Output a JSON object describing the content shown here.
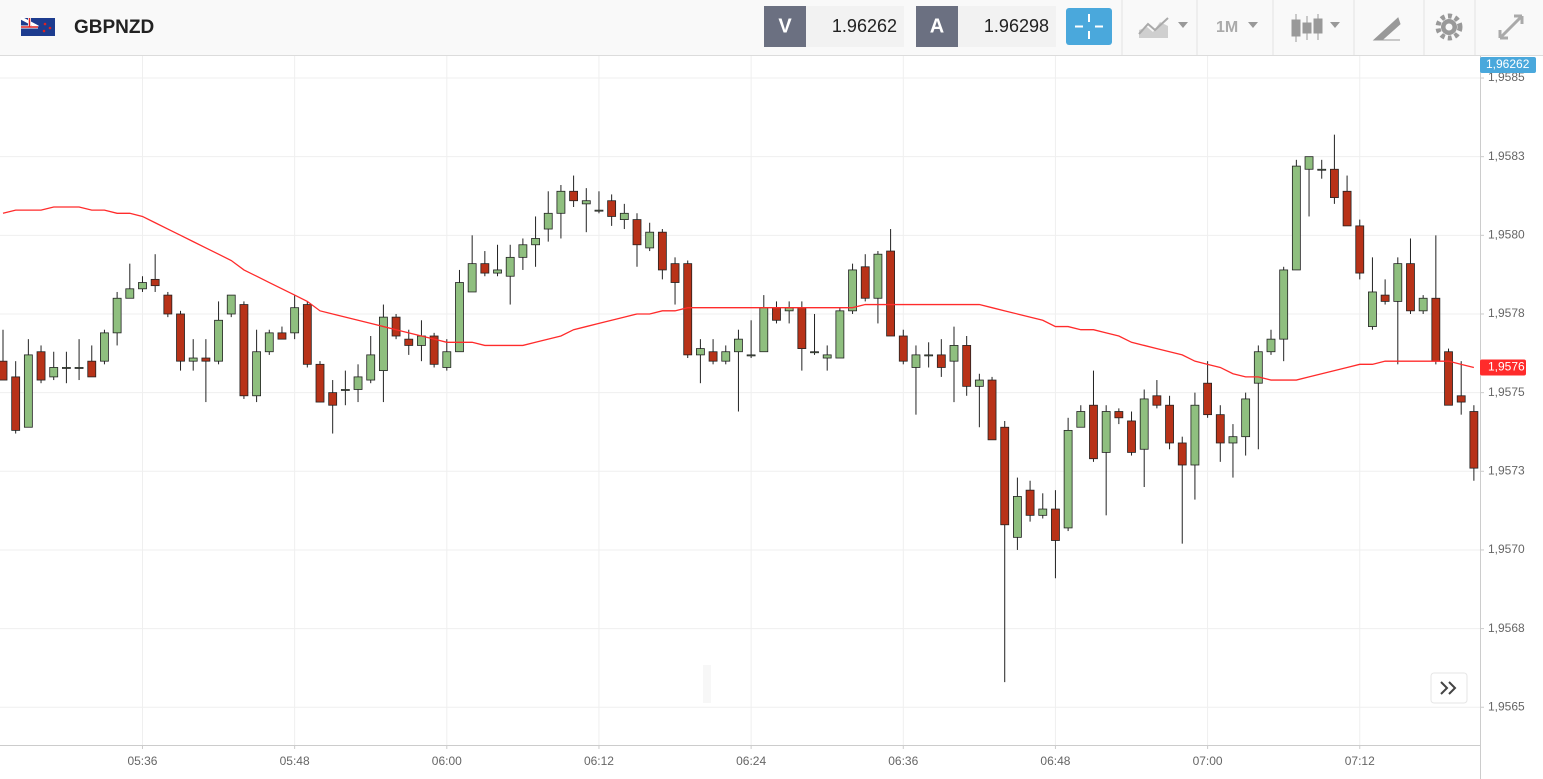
{
  "toolbar": {
    "symbol": "GBPNZD",
    "bid_label": "V",
    "bid": "1.96262",
    "ask_label": "A",
    "ask": "1.96298",
    "timeframe": "1M"
  },
  "chart_data": {
    "type": "candlestick",
    "categories": [
      null,
      null,
      null,
      null,
      null,
      null,
      null,
      null,
      null,
      null,
      null,
      "05:36",
      null,
      null,
      null,
      null,
      null,
      null,
      null,
      null,
      null,
      null,
      null,
      "05:48",
      null,
      null,
      null,
      null,
      null,
      null,
      null,
      null,
      null,
      null,
      null,
      "06:00",
      null,
      null,
      null,
      null,
      null,
      null,
      null,
      null,
      null,
      null,
      null,
      "06:12",
      null,
      null,
      null,
      null,
      null,
      null,
      null,
      null,
      null,
      null,
      null,
      "06:24",
      null,
      null,
      null,
      null,
      null,
      null,
      null,
      null,
      null,
      null,
      null,
      "06:36",
      null,
      null,
      null,
      null,
      null,
      null,
      null,
      null,
      null,
      null,
      null,
      "06:48",
      null,
      null,
      null,
      null,
      null,
      null,
      null,
      null,
      null,
      null,
      null,
      "07:00",
      null,
      null,
      null,
      null,
      null,
      null,
      null,
      null,
      null,
      null,
      null,
      "07:12",
      null,
      null,
      null,
      null,
      null,
      null,
      null,
      null,
      null
    ],
    "open": [
      1.9576,
      1.95755,
      1.95739,
      1.95763,
      1.95755,
      1.95758,
      1.95758,
      1.9576,
      1.9576,
      1.95769,
      1.9578,
      1.95783,
      1.95786,
      1.95781,
      1.95775,
      1.9576,
      1.95761,
      1.9576,
      1.95775,
      1.95778,
      1.95749,
      1.95763,
      1.95769,
      1.95769,
      1.95778,
      1.95759,
      1.9575,
      1.95751,
      1.95751,
      1.95754,
      1.95757,
      1.95774,
      1.95767,
      1.95765,
      1.95768,
      1.95758,
      1.95763,
      1.95782,
      1.95791,
      1.95788,
      1.95787,
      1.95793,
      1.95797,
      1.95802,
      1.95807,
      1.95814,
      1.9581,
      1.95808,
      1.95811,
      1.95805,
      1.95805,
      1.95796,
      1.95801,
      1.95791,
      1.95791,
      1.95762,
      1.95763,
      1.9576,
      1.95763,
      1.95762,
      1.95763,
      1.95777,
      1.95776,
      1.95777,
      1.95763,
      1.95761,
      1.95761,
      1.95776,
      1.9579,
      1.9578,
      1.95795,
      1.95768,
      1.95758,
      1.95762,
      1.95762,
      1.9576,
      1.95765,
      1.95752,
      1.95754,
      1.95739,
      1.95704,
      1.95719,
      1.95711,
      1.95713,
      1.95707,
      1.95739,
      1.95746,
      1.95731,
      1.95744,
      1.95741,
      1.95732,
      1.95749,
      1.95746,
      1.95734,
      1.95727,
      1.95753,
      1.95743,
      1.95734,
      1.95736,
      1.95753,
      1.95763,
      1.95767,
      1.95789,
      1.95821,
      1.95821,
      1.95821,
      1.95814,
      1.95803,
      1.95771,
      1.95781,
      1.95779,
      1.95791,
      1.95776,
      1.9578,
      1.95763,
      1.95749,
      1.95744
    ],
    "high": [
      1.9577,
      1.9576,
      1.95767,
      1.95765,
      1.95763,
      1.95763,
      1.95767,
      1.95765,
      1.9577,
      1.95782,
      1.95791,
      1.95787,
      1.95794,
      1.95782,
      1.95776,
      1.95767,
      1.95767,
      1.95779,
      1.95781,
      1.95779,
      1.9577,
      1.9577,
      1.95771,
      1.95781,
      1.95779,
      1.9576,
      1.95754,
      1.95757,
      1.95759,
      1.95768,
      1.95778,
      1.95775,
      1.9577,
      1.95773,
      1.95769,
      1.95767,
      1.95789,
      1.958,
      1.95795,
      1.95797,
      1.95797,
      1.95799,
      1.95806,
      1.95814,
      1.95816,
      1.95819,
      1.95815,
      1.95814,
      1.95813,
      1.9581,
      1.95807,
      1.95804,
      1.95802,
      1.95793,
      1.95792,
      1.95767,
      1.95767,
      1.95765,
      1.9577,
      1.95773,
      1.95781,
      1.95779,
      1.95779,
      1.95779,
      1.95775,
      1.95765,
      1.95777,
      1.95791,
      1.95794,
      1.95795,
      1.95802,
      1.9577,
      1.95765,
      1.95766,
      1.95767,
      1.95771,
      1.95768,
      1.95756,
      1.95755,
      1.95741,
      1.95723,
      1.95722,
      1.95718,
      1.95719,
      1.95742,
      1.95746,
      1.95757,
      1.95746,
      1.95745,
      1.95744,
      1.95751,
      1.95754,
      1.95749,
      1.95736,
      1.9575,
      1.9576,
      1.95746,
      1.9574,
      1.9575,
      1.95765,
      1.9577,
      1.9579,
      1.95824,
      1.95825,
      1.95824,
      1.95832,
      1.95819,
      1.95805,
      1.95793,
      1.95786,
      1.95793,
      1.95799,
      1.95781,
      1.958,
      1.95764,
      1.9576,
      1.95746
    ],
    "low": [
      1.95754,
      1.95737,
      1.95739,
      1.95753,
      1.95754,
      1.95753,
      1.95754,
      1.95755,
      1.95759,
      1.95765,
      1.9578,
      1.95782,
      1.95782,
      1.95774,
      1.95757,
      1.95757,
      1.95747,
      1.95759,
      1.95774,
      1.95748,
      1.95747,
      1.95762,
      1.95767,
      1.95767,
      1.95758,
      1.95747,
      1.95737,
      1.95746,
      1.95747,
      1.95753,
      1.95747,
      1.95767,
      1.95762,
      1.9576,
      1.95758,
      1.95757,
      1.95763,
      1.95782,
      1.95787,
      1.95787,
      1.95778,
      1.95789,
      1.9579,
      1.95798,
      1.95799,
      1.95809,
      1.95801,
      1.95807,
      1.95803,
      1.95802,
      1.9579,
      1.95795,
      1.95786,
      1.95778,
      1.95761,
      1.95753,
      1.95759,
      1.95759,
      1.95744,
      1.95761,
      1.95763,
      1.95772,
      1.95772,
      1.95757,
      1.95762,
      1.95757,
      1.95761,
      1.95775,
      1.95779,
      1.95772,
      1.95768,
      1.95759,
      1.95743,
      1.95758,
      1.95755,
      1.95747,
      1.95749,
      1.95739,
      1.95735,
      1.95658,
      1.957,
      1.95709,
      1.9571,
      1.95691,
      1.95706,
      1.95739,
      1.95728,
      1.95711,
      1.9574,
      1.9573,
      1.9572,
      1.95745,
      1.95732,
      1.95702,
      1.95716,
      1.95742,
      1.95728,
      1.95723,
      1.9573,
      1.95732,
      1.95762,
      1.9576,
      1.95789,
      1.95806,
      1.95818,
      1.9581,
      1.95803,
      1.95786,
      1.9577,
      1.95778,
      1.95759,
      1.95775,
      1.95775,
      1.95759,
      1.95746,
      1.95743,
      1.95722
    ],
    "close": [
      1.95754,
      1.95738,
      1.95762,
      1.95754,
      1.95758,
      1.95758,
      1.95758,
      1.95755,
      1.95769,
      1.9578,
      1.95783,
      1.95785,
      1.95784,
      1.95775,
      1.9576,
      1.95761,
      1.9576,
      1.95773,
      1.95781,
      1.95749,
      1.95763,
      1.95769,
      1.95767,
      1.95777,
      1.95759,
      1.95747,
      1.95746,
      1.95751,
      1.95755,
      1.95762,
      1.95774,
      1.95768,
      1.95765,
      1.95768,
      1.95759,
      1.95763,
      1.95785,
      1.95791,
      1.95788,
      1.95789,
      1.95793,
      1.95797,
      1.95799,
      1.95807,
      1.95814,
      1.95811,
      1.95811,
      1.95808,
      1.95806,
      1.95807,
      1.95797,
      1.95801,
      1.95789,
      1.95785,
      1.95762,
      1.95764,
      1.9576,
      1.95763,
      1.95767,
      1.95762,
      1.95777,
      1.95773,
      1.95777,
      1.95764,
      1.95763,
      1.95762,
      1.95776,
      1.95789,
      1.9578,
      1.95794,
      1.95768,
      1.9576,
      1.95762,
      1.95762,
      1.95758,
      1.95765,
      1.95752,
      1.95754,
      1.95735,
      1.95708,
      1.95717,
      1.95711,
      1.95713,
      1.95703,
      1.95738,
      1.95744,
      1.95729,
      1.95744,
      1.95742,
      1.95731,
      1.95748,
      1.95746,
      1.95734,
      1.95727,
      1.95746,
      1.95743,
      1.95734,
      1.95736,
      1.95748,
      1.95763,
      1.95767,
      1.95789,
      1.95822,
      1.95825,
      1.95821,
      1.95812,
      1.95803,
      1.95788,
      1.95782,
      1.95779,
      1.95791,
      1.95776,
      1.9578,
      1.9576,
      1.95746,
      1.95747,
      1.95726
    ],
    "up_color": "#8fbf7f",
    "down_color": "#b83218",
    "ma": {
      "color": "#ff2b2b",
      "label": "1,9576",
      "values": [
        1.95807,
        1.95808,
        1.95808,
        1.95808,
        1.95809,
        1.95809,
        1.95809,
        1.95808,
        1.95808,
        1.95807,
        1.95807,
        1.95806,
        1.95804,
        1.95802,
        1.958,
        1.95798,
        1.95796,
        1.95794,
        1.95792,
        1.95789,
        1.95787,
        1.95785,
        1.95783,
        1.95781,
        1.95779,
        1.95776,
        1.95775,
        1.95774,
        1.95773,
        1.95772,
        1.95771,
        1.9577,
        1.95769,
        1.95768,
        1.95767,
        1.95766,
        1.95766,
        1.95766,
        1.95765,
        1.95765,
        1.95765,
        1.95765,
        1.95766,
        1.95767,
        1.95768,
        1.9577,
        1.95771,
        1.95772,
        1.95773,
        1.95774,
        1.95775,
        1.95775,
        1.95776,
        1.95776,
        1.95777,
        1.95777,
        1.95777,
        1.95777,
        1.95777,
        1.95777,
        1.95777,
        1.95777,
        1.95777,
        1.95777,
        1.95777,
        1.95777,
        1.95777,
        1.95777,
        1.95778,
        1.95778,
        1.95778,
        1.95778,
        1.95778,
        1.95778,
        1.95778,
        1.95778,
        1.95778,
        1.95778,
        1.95777,
        1.95776,
        1.95775,
        1.95774,
        1.95773,
        1.95771,
        1.95771,
        1.9577,
        1.9577,
        1.95769,
        1.95768,
        1.95766,
        1.95765,
        1.95764,
        1.95763,
        1.95762,
        1.9576,
        1.95759,
        1.95758,
        1.95756,
        1.95755,
        1.95755,
        1.95754,
        1.95754,
        1.95754,
        1.95755,
        1.95756,
        1.95757,
        1.95758,
        1.95759,
        1.95759,
        1.9576,
        1.9576,
        1.9576,
        1.9576,
        1.9576,
        1.9576,
        1.95759,
        1.95758
      ]
    },
    "current_price": {
      "label": "1,96262",
      "color": "#4aa8dc"
    },
    "ylim": [
      1.95638,
      1.95857
    ],
    "yticks": [
      {
        "value": 1.9585,
        "label": "1,9585"
      },
      {
        "value": 1.95825,
        "label": "1,9583"
      },
      {
        "value": 1.958,
        "label": "1,9580"
      },
      {
        "value": 1.95775,
        "label": "1,9578"
      },
      {
        "value": 1.9575,
        "label": "1,9575"
      },
      {
        "value": 1.95725,
        "label": "1,9573"
      },
      {
        "value": 1.957,
        "label": "1,9570"
      },
      {
        "value": 1.95675,
        "label": "1,9568"
      },
      {
        "value": 1.9565,
        "label": "1,9565"
      }
    ],
    "grid": true
  }
}
